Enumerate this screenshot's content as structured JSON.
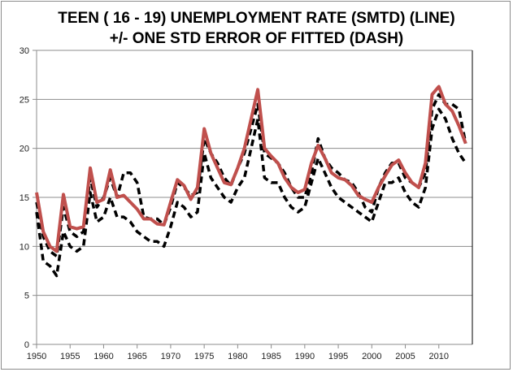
{
  "chart_data": {
    "type": "line",
    "title_line1": "TEEN ( 16 - 19) UNEMPLOYMENT RATE (SMTD)  (LINE)",
    "title_line2": "+/- ONE STD ERROR OF FITTED (DASH)",
    "xlabel": "",
    "ylabel": "",
    "xlim": [
      1950,
      2015
    ],
    "ylim": [
      0,
      30
    ],
    "x_ticks": [
      1950,
      1955,
      1960,
      1965,
      1970,
      1975,
      1980,
      1985,
      1990,
      1995,
      2000,
      2005,
      2010
    ],
    "y_ticks": [
      0,
      5,
      10,
      15,
      20,
      25,
      30
    ],
    "grid": "horizontal",
    "legend": "none",
    "x": [
      1950,
      1951,
      1952,
      1953,
      1954,
      1955,
      1956,
      1957,
      1958,
      1959,
      1960,
      1961,
      1962,
      1963,
      1964,
      1965,
      1966,
      1967,
      1968,
      1969,
      1970,
      1971,
      1972,
      1973,
      1974,
      1975,
      1976,
      1977,
      1978,
      1979,
      1980,
      1981,
      1982,
      1983,
      1984,
      1985,
      1986,
      1987,
      1988,
      1989,
      1990,
      1991,
      1992,
      1993,
      1994,
      1995,
      1996,
      1997,
      1998,
      1999,
      2000,
      2001,
      2002,
      2003,
      2004,
      2005,
      2006,
      2007,
      2008,
      2009,
      2010,
      2011,
      2012,
      2013,
      2014
    ],
    "series": [
      {
        "style": "solid",
        "color": "#c0504d",
        "values": [
          15.5,
          11.5,
          10,
          9.5,
          15.3,
          12,
          11.8,
          12,
          18,
          14.5,
          14.8,
          17.8,
          15,
          15.2,
          14.5,
          13.8,
          12.8,
          12.8,
          12.3,
          12.2,
          14.5,
          16.8,
          16.2,
          14.8,
          16,
          22,
          19.5,
          18,
          16.5,
          16.3,
          18,
          20,
          23,
          26,
          20,
          19.2,
          18.5,
          17,
          16,
          15.5,
          15.8,
          18.5,
          20.3,
          19,
          17.5,
          17,
          16.8,
          16.2,
          15.2,
          14.8,
          14.5,
          16,
          17.2,
          18.3,
          18.8,
          17.5,
          16.5,
          16,
          18.5,
          25.5,
          26.3,
          24.5,
          23.8,
          22.3,
          20.5
        ]
      },
      {
        "style": "dash",
        "color": "#000000",
        "values": [
          14.5,
          11,
          9.5,
          9,
          14,
          11.5,
          11,
          11.5,
          17,
          14,
          15,
          17,
          15,
          17.5,
          17.5,
          16.5,
          13,
          12.8,
          12.8,
          12.2,
          14,
          16.5,
          16,
          15.2,
          15.5,
          21,
          19.5,
          18.5,
          17,
          16.2,
          18,
          19.5,
          22,
          24.5,
          19.5,
          19,
          18.5,
          17.5,
          16,
          15,
          15,
          17.5,
          21,
          19,
          18,
          17.5,
          16.8,
          16.5,
          15.5,
          14,
          13.5,
          16,
          17.5,
          18.5,
          18.5,
          17,
          16.5,
          16,
          17.5,
          24,
          25.5,
          24.5,
          24.5,
          24,
          20.5
        ]
      },
      {
        "style": "dash",
        "color": "#000000",
        "values": [
          13.5,
          8.5,
          8,
          7,
          11.5,
          10,
          9.5,
          10,
          15.5,
          12.5,
          13,
          15,
          13,
          13,
          12.5,
          11.5,
          11,
          10.5,
          10.5,
          10,
          12,
          14.5,
          14,
          13,
          13.5,
          19.5,
          17,
          16,
          15,
          14.5,
          16,
          17,
          20,
          23,
          17,
          16.5,
          16.5,
          15,
          14,
          13.5,
          14,
          16.5,
          19,
          17.5,
          16,
          15,
          14.5,
          14,
          13.5,
          13,
          12.5,
          14.5,
          16.5,
          16.5,
          17,
          15.5,
          14.5,
          14,
          16,
          22,
          24,
          23,
          21,
          19.5,
          18.5
        ]
      }
    ]
  }
}
